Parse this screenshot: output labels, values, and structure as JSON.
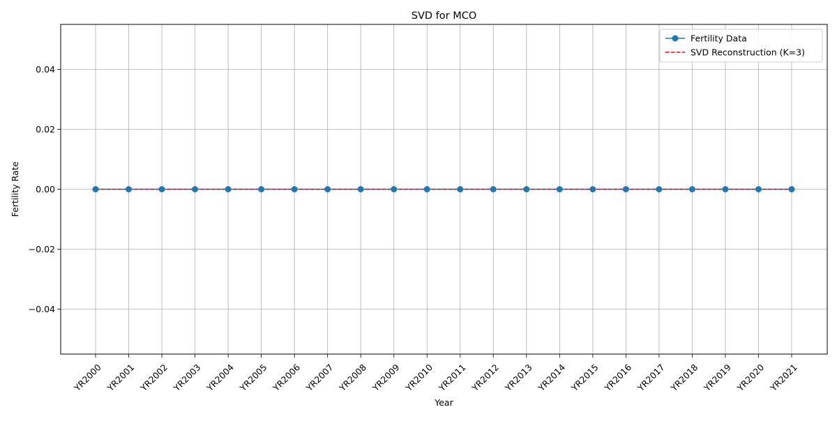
{
  "chart_data": {
    "type": "line",
    "title": "SVD for MCO",
    "xlabel": "Year",
    "ylabel": "Fertility Rate",
    "categories": [
      "YR2000",
      "YR2001",
      "YR2002",
      "YR2003",
      "YR2004",
      "YR2005",
      "YR2006",
      "YR2007",
      "YR2008",
      "YR2009",
      "YR2010",
      "YR2011",
      "YR2012",
      "YR2013",
      "YR2014",
      "YR2015",
      "YR2016",
      "YR2017",
      "YR2018",
      "YR2019",
      "YR2020",
      "YR2021"
    ],
    "ylim": [
      -0.055,
      0.055
    ],
    "yticks": [
      -0.04,
      -0.02,
      0.0,
      0.02,
      0.04
    ],
    "ytick_labels": [
      "−0.04",
      "−0.02",
      "0.00",
      "0.02",
      "0.04"
    ],
    "grid": true,
    "legend_position": "top-right",
    "series": [
      {
        "name": "Fertility Data",
        "style": "solid-line-with-circle-markers",
        "color": "#1f77b4",
        "values": [
          0,
          0,
          0,
          0,
          0,
          0,
          0,
          0,
          0,
          0,
          0,
          0,
          0,
          0,
          0,
          0,
          0,
          0,
          0,
          0,
          0,
          0
        ]
      },
      {
        "name": "SVD Reconstruction (K=3)",
        "style": "dashed-line",
        "color": "#ff0000",
        "values": [
          0,
          0,
          0,
          0,
          0,
          0,
          0,
          0,
          0,
          0,
          0,
          0,
          0,
          0,
          0,
          0,
          0,
          0,
          0,
          0,
          0,
          0
        ]
      }
    ]
  }
}
